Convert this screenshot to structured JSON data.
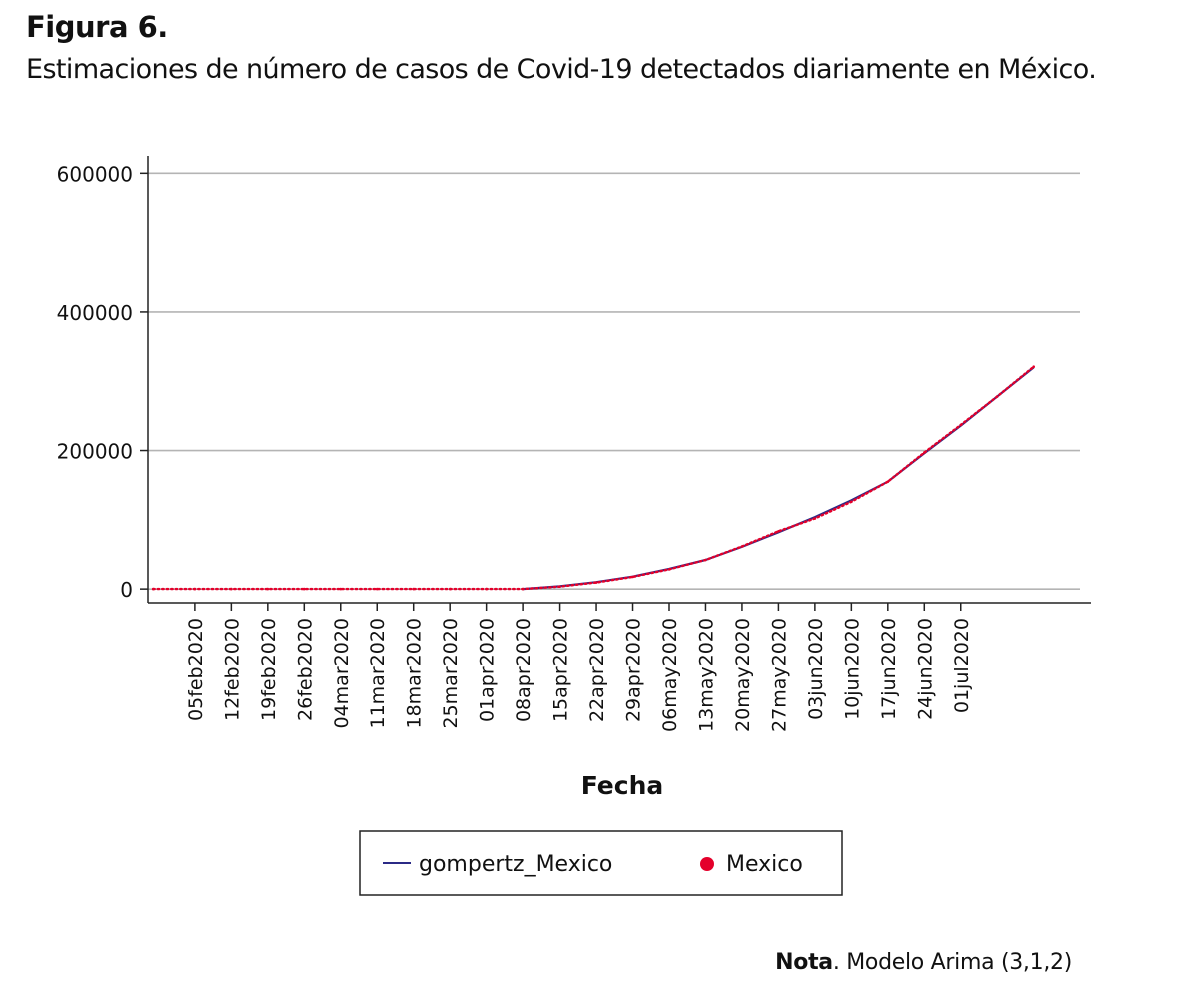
{
  "figure": {
    "label": "Figura 6.",
    "caption": "Estimaciones de número de casos de Covid-19 detectados diariamente en México."
  },
  "note": {
    "lead": "Nota",
    "text": ". Modelo Arima (3,1,2)"
  },
  "chart_data": {
    "type": "line",
    "title": "",
    "xlabel": "Fecha",
    "ylabel": "",
    "xlim": [
      "2020-01-27",
      "2020-07-26"
    ],
    "ylim": [
      -20000,
      625000
    ],
    "yticks": [
      0,
      200000,
      400000,
      600000
    ],
    "ytick_labels": [
      "0",
      "200000",
      "400000",
      "600000"
    ],
    "xticks": [
      "2020-02-05",
      "2020-02-12",
      "2020-02-19",
      "2020-02-26",
      "2020-03-04",
      "2020-03-11",
      "2020-03-18",
      "2020-03-25",
      "2020-04-01",
      "2020-04-08",
      "2020-04-15",
      "2020-04-22",
      "2020-04-29",
      "2020-05-06",
      "2020-05-13",
      "2020-05-20",
      "2020-05-27",
      "2020-06-03",
      "2020-06-10",
      "2020-06-17",
      "2020-06-24",
      "2020-07-01"
    ],
    "xtick_labels": [
      "05feb2020",
      "12feb2020",
      "19feb2020",
      "26feb2020",
      "04mar2020",
      "11mar2020",
      "18mar2020",
      "25mar2020",
      "01apr2020",
      "08apr2020",
      "15apr2020",
      "22apr2020",
      "29apr2020",
      "06may2020",
      "13may2020",
      "20may2020",
      "27may2020",
      "03jun2020",
      "10jun2020",
      "17jun2020",
      "24jun2020",
      "01jul2020"
    ],
    "grid": true,
    "legend": {
      "position": "bottom"
    },
    "series": [
      {
        "name": "gompertz_Mexico",
        "style": "line",
        "color": "#2b2a86",
        "x": [
          "2020-04-08",
          "2020-04-15",
          "2020-04-22",
          "2020-04-29",
          "2020-05-06",
          "2020-05-13",
          "2020-05-20",
          "2020-05-27",
          "2020-06-03",
          "2020-06-10",
          "2020-06-17",
          "2020-06-24",
          "2020-07-01",
          "2020-07-08",
          "2020-07-15"
        ],
        "y": [
          0,
          4000,
          10000,
          18000,
          29000,
          42000,
          61000,
          82000,
          104000,
          128000,
          155000,
          196000,
          236000,
          278000,
          320000
        ]
      },
      {
        "name": "Mexico",
        "style": "dots",
        "color": "#e4002b",
        "x": [
          "2020-01-28",
          "2020-02-05",
          "2020-02-12",
          "2020-02-19",
          "2020-02-26",
          "2020-03-04",
          "2020-03-11",
          "2020-03-18",
          "2020-03-25",
          "2020-04-01",
          "2020-04-08",
          "2020-04-15",
          "2020-04-22",
          "2020-04-29",
          "2020-05-06",
          "2020-05-13",
          "2020-05-20",
          "2020-05-27",
          "2020-06-03",
          "2020-06-10",
          "2020-06-17",
          "2020-06-24",
          "2020-07-01",
          "2020-07-08",
          "2020-07-15"
        ],
        "y": [
          0,
          0,
          0,
          0,
          0,
          0,
          0,
          0,
          0,
          0,
          0,
          3500,
          9500,
          17500,
          28500,
          42000,
          61500,
          83500,
          102000,
          126000,
          155000,
          197000,
          237000,
          278000,
          321000
        ]
      }
    ]
  }
}
